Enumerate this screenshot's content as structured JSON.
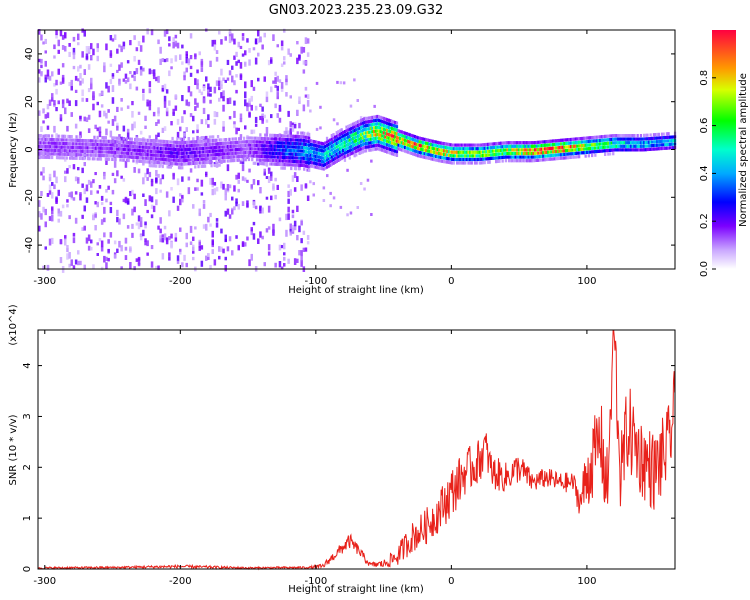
{
  "figure_title": "GN03.2023.235.23.09.G32",
  "chart_data": [
    {
      "type": "heatmap",
      "title": "GN03.2023.235.23.09.G32",
      "xlabel": "Height of straight line (km)",
      "ylabel": "Frequency (Hz)",
      "xlim": [
        -305,
        165
      ],
      "ylim": [
        -50,
        50
      ],
      "x_ticks": [
        -300,
        -200,
        -100,
        0,
        100
      ],
      "y_ticks": [
        -40,
        -20,
        0,
        20,
        40
      ],
      "colorbar": {
        "label": "Normalized spectral amplitude",
        "range": [
          0,
          1
        ],
        "ticks": [
          0.0,
          0.2,
          0.4,
          0.6,
          0.8
        ],
        "colormap": [
          "#ffffff",
          "#7b00ff",
          "#0000ff",
          "#00e0ff",
          "#00ff40",
          "#ffe000",
          "#ff0030"
        ]
      },
      "ridge": {
        "x": [
          -305,
          -250,
          -200,
          -150,
          -110,
          -95,
          -80,
          -65,
          -55,
          -45,
          -35,
          -25,
          -10,
          0,
          20,
          40,
          60,
          80,
          100,
          120,
          140,
          165
        ],
        "freq": [
          2,
          1,
          -1,
          1,
          0,
          -2,
          3,
          7,
          8,
          6,
          4,
          2,
          0,
          -1,
          -1,
          0,
          0,
          1,
          2,
          3,
          3,
          4
        ],
        "amplitude": [
          0.15,
          0.15,
          0.2,
          0.15,
          0.4,
          0.45,
          0.5,
          0.65,
          0.8,
          0.85,
          0.85,
          0.9,
          0.85,
          0.75,
          0.7,
          0.75,
          0.9,
          0.95,
          0.7,
          0.55,
          0.45,
          0.45
        ]
      },
      "noise_region_x": [
        -305,
        -105
      ]
    },
    {
      "type": "line",
      "xlabel": "Height of straight line (km)",
      "ylabel": "SNR (10 * v/v)",
      "y_multiplier": "(x10^4)",
      "xlim": [
        -305,
        165
      ],
      "ylim": [
        0,
        4.7
      ],
      "x_ticks": [
        -300,
        -200,
        -100,
        0,
        100
      ],
      "y_ticks": [
        0,
        1,
        2,
        3,
        4
      ],
      "series": [
        {
          "color": "#e8211a",
          "x": [
            -305,
            -250,
            -200,
            -150,
            -105,
            -95,
            -85,
            -75,
            -68,
            -60,
            -50,
            -40,
            -30,
            -20,
            -10,
            0,
            10,
            20,
            25,
            30,
            40,
            50,
            60,
            70,
            80,
            90,
            95,
            100,
            110,
            115,
            120,
            125,
            130,
            140,
            150,
            160,
            165
          ],
          "values": [
            0.02,
            0.03,
            0.05,
            0.02,
            0.03,
            0.05,
            0.3,
            0.55,
            0.35,
            0.08,
            0.1,
            0.25,
            0.6,
            0.8,
            1.1,
            1.5,
            1.9,
            2.1,
            2.4,
            1.9,
            1.8,
            2.0,
            1.7,
            1.8,
            1.7,
            1.7,
            1.3,
            1.8,
            2.6,
            1.5,
            4.7,
            1.8,
            2.8,
            2.2,
            1.9,
            2.4,
            3.2
          ],
          "noise_amplitude": [
            0.02,
            0.02,
            0.03,
            0.02,
            0.02,
            0.05,
            0.1,
            0.15,
            0.1,
            0.05,
            0.08,
            0.2,
            0.3,
            0.35,
            0.4,
            0.5,
            0.45,
            0.45,
            0.4,
            0.35,
            0.3,
            0.3,
            0.2,
            0.2,
            0.2,
            0.2,
            0.3,
            0.7,
            0.8,
            0.9,
            0.9,
            0.8,
            0.9,
            0.8,
            0.8,
            0.8,
            0.8
          ]
        }
      ]
    }
  ]
}
